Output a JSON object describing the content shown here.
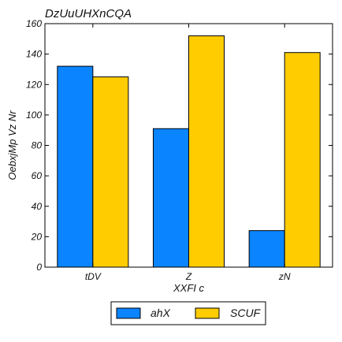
{
  "chart_data": {
    "type": "bar",
    "title": "DzUuUHXnCQA",
    "xlabel": "XXFI c",
    "ylabel": "OebxjMp Vz Nr",
    "categories": [
      "tDV",
      "Z",
      "zN"
    ],
    "series": [
      {
        "name": "ahX",
        "values": [
          132,
          91,
          24
        ],
        "color": "#0a84ff"
      },
      {
        "name": "SCUF",
        "values": [
          125,
          152,
          141
        ],
        "color": "#ffcc00"
      }
    ],
    "ylim": [
      0,
      160
    ],
    "yticks": [
      0,
      20,
      40,
      60,
      80,
      100,
      120,
      140,
      160
    ],
    "grid": false,
    "legend_position": "bottom-center"
  }
}
